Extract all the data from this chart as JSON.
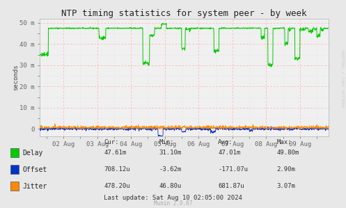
{
  "title": "NTP timing statistics for system peer - by week",
  "ylabel": "seconds",
  "background_color": "#e8e8e8",
  "plot_background": "#f0f0f0",
  "grid_color_major": "#ffb0b0",
  "grid_color_minor": "#dddddd",
  "y_ticks": [
    0,
    10,
    20,
    30,
    40,
    50
  ],
  "y_tick_labels": [
    "0",
    "10 m",
    "20 m",
    "30 m",
    "40 m",
    "50 m"
  ],
  "ylim": [
    -3.5,
    52
  ],
  "x_tick_positions": [
    1,
    2,
    3,
    4,
    5,
    6,
    7,
    8
  ],
  "x_tick_labels": [
    "02 Aug",
    "03 Aug",
    "04 Aug",
    "05 Aug",
    "06 Aug",
    "07 Aug",
    "08 Aug",
    "09 Aug"
  ],
  "xlim": [
    0.3,
    8.85
  ],
  "delay_color": "#00cc00",
  "offset_color": "#0033cc",
  "jitter_color": "#ff8800",
  "legend_items": [
    "Delay",
    "Offset",
    "Jitter"
  ],
  "stats_header": [
    "Cur:",
    "Min:",
    "Avg:",
    "Max:"
  ],
  "stats_delay": [
    "47.61m",
    "31.10m",
    "47.01m",
    "49.80m"
  ],
  "stats_offset": [
    "708.12u",
    "-3.62m",
    "-171.07u",
    "2.90m"
  ],
  "stats_jitter": [
    "478.20u",
    "46.80u",
    "681.87u",
    "3.07m"
  ],
  "last_update": "Last update: Sat Aug 10 02:05:00 2024",
  "munin_version": "Munin 2.0.67",
  "rrdtool_text": "RRDTOOL / TOBI OETIKER",
  "title_fontsize": 9,
  "axis_fontsize": 6.5,
  "legend_fontsize": 7,
  "stats_fontsize": 6.5
}
